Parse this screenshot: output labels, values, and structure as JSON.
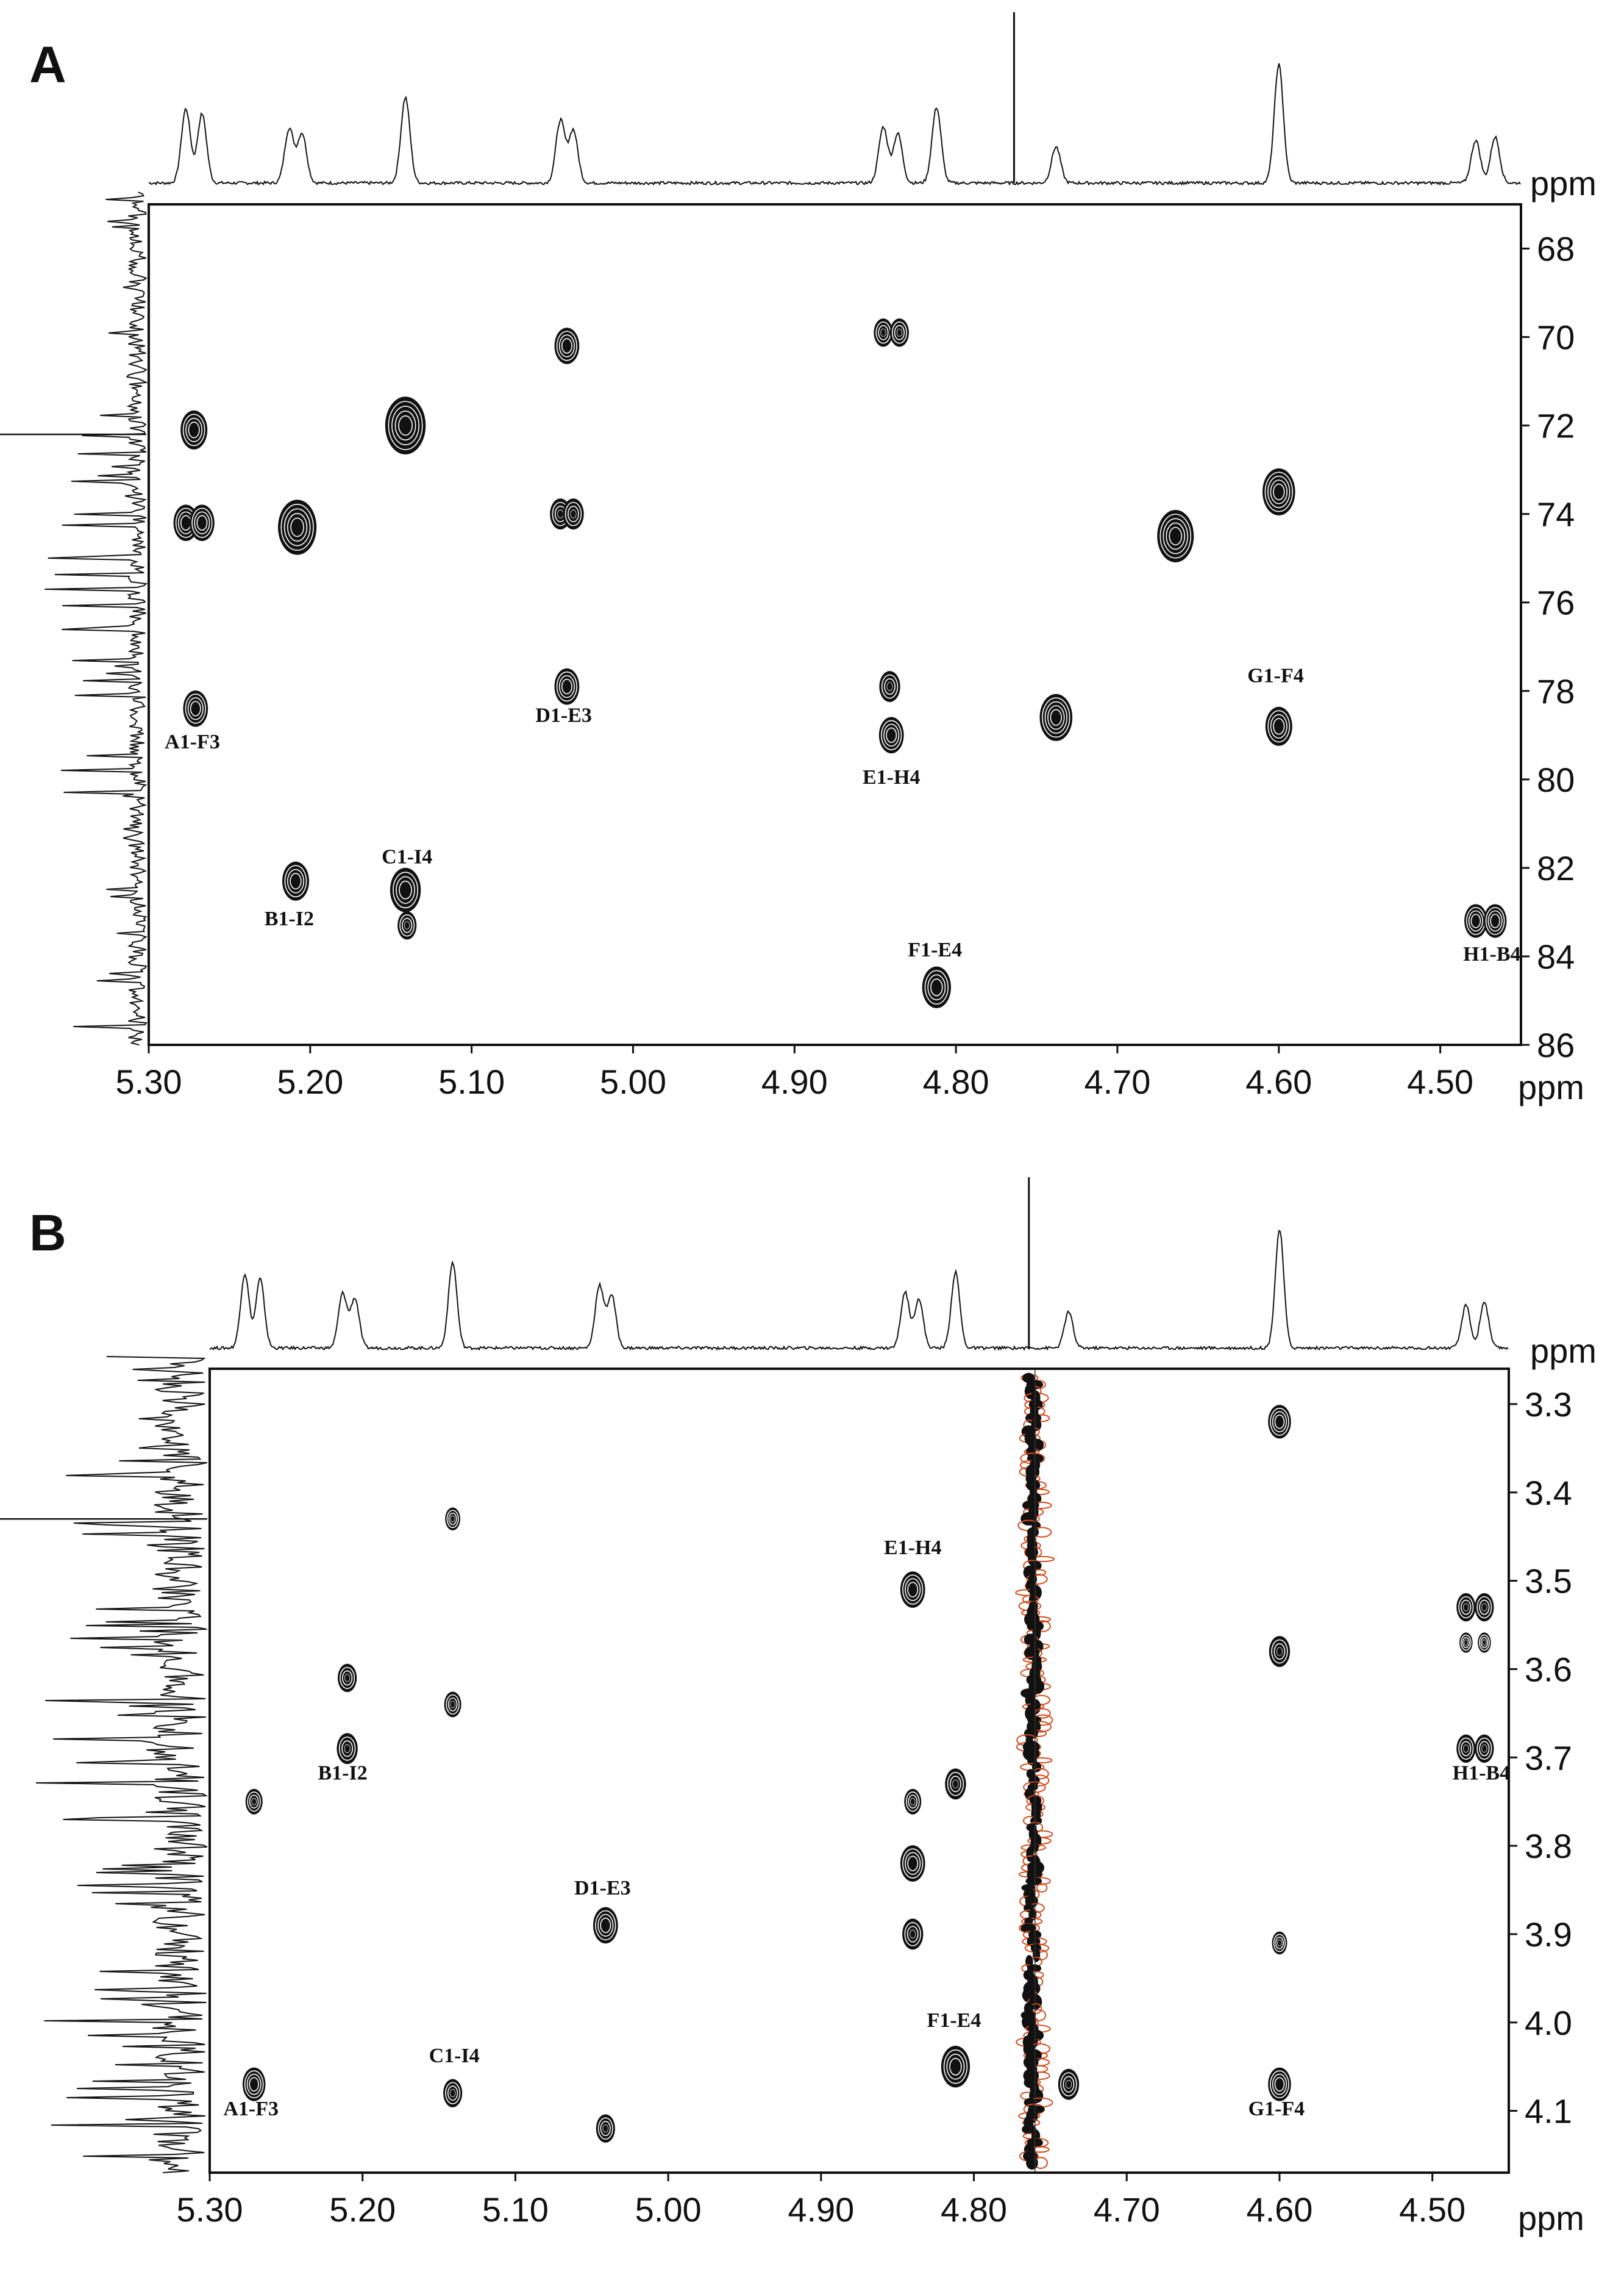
{
  "colors": {
    "positive": "#111111",
    "negative": "#d64a1a",
    "frame": "#111111"
  },
  "chart_data": [
    {
      "panel": "A",
      "type": "scatter",
      "description_type": "2D NMR contour (HMBC-type)",
      "xlabel": "ppm",
      "ylabel": "ppm",
      "xlim": [
        5.3,
        4.45
      ],
      "ylim": [
        67.0,
        86.0
      ],
      "x_ticks": [
        5.3,
        5.2,
        5.1,
        5.0,
        4.9,
        4.8,
        4.7,
        4.6,
        4.5
      ],
      "x_tick_labels": [
        "5.30",
        "5.20",
        "5.10",
        "5.00",
        "4.90",
        "4.80",
        "4.70",
        "4.60",
        "4.50"
      ],
      "y_ticks": [
        68,
        70,
        72,
        74,
        76,
        78,
        80,
        82,
        84,
        86
      ],
      "y_tick_labels": [
        "68",
        "70",
        "72",
        "74",
        "76",
        "78",
        "80",
        "82",
        "84",
        "86"
      ],
      "top_axis_unit": "ppm",
      "peaks": [
        {
          "x": 5.272,
          "y": 72.1,
          "s": 1.0
        },
        {
          "x": 5.277,
          "y": 74.2,
          "s": 0.9
        },
        {
          "x": 5.267,
          "y": 74.2,
          "s": 0.9
        },
        {
          "x": 5.271,
          "y": 78.4,
          "s": 0.9
        },
        {
          "x": 5.208,
          "y": 74.3,
          "s": 1.6
        },
        {
          "x": 5.209,
          "y": 82.3,
          "s": 1.0
        },
        {
          "x": 5.141,
          "y": 72.0,
          "s": 1.7
        },
        {
          "x": 5.141,
          "y": 82.5,
          "s": 1.2
        },
        {
          "x": 5.14,
          "y": 83.3,
          "s": 0.6
        },
        {
          "x": 5.041,
          "y": 70.2,
          "s": 0.9
        },
        {
          "x": 5.045,
          "y": 74.0,
          "s": 0.7
        },
        {
          "x": 5.037,
          "y": 74.0,
          "s": 0.7
        },
        {
          "x": 5.041,
          "y": 77.9,
          "s": 0.9
        },
        {
          "x": 4.845,
          "y": 69.9,
          "s": 0.6
        },
        {
          "x": 4.835,
          "y": 69.9,
          "s": 0.6
        },
        {
          "x": 4.841,
          "y": 77.9,
          "s": 0.7
        },
        {
          "x": 4.84,
          "y": 79.0,
          "s": 0.9
        },
        {
          "x": 4.812,
          "y": 84.7,
          "s": 1.1
        },
        {
          "x": 4.738,
          "y": 78.6,
          "s": 1.3
        },
        {
          "x": 4.664,
          "y": 74.5,
          "s": 1.5
        },
        {
          "x": 4.6,
          "y": 73.5,
          "s": 1.3
        },
        {
          "x": 4.6,
          "y": 78.8,
          "s": 1.0
        },
        {
          "x": 4.478,
          "y": 83.2,
          "s": 0.8
        },
        {
          "x": 4.466,
          "y": 83.2,
          "s": 0.8
        }
      ],
      "annotations": [
        {
          "text": "A1-F3",
          "x": 5.273,
          "y": 79.3
        },
        {
          "text": "B1-I2",
          "x": 5.213,
          "y": 83.3
        },
        {
          "text": "C1-I4",
          "x": 5.14,
          "y": 81.9
        },
        {
          "text": "D1-E3",
          "x": 5.043,
          "y": 78.7
        },
        {
          "text": "E1-H4",
          "x": 4.84,
          "y": 80.1
        },
        {
          "text": "F1-E4",
          "x": 4.813,
          "y": 84.0
        },
        {
          "text": "G1-F4",
          "x": 4.602,
          "y": 77.8
        },
        {
          "text": "H1-B4",
          "x": 4.468,
          "y": 84.1
        }
      ]
    },
    {
      "panel": "B",
      "type": "scatter",
      "description_type": "2D NMR contour (NOESY/ROESY-type)",
      "xlabel": "ppm",
      "ylabel": "ppm",
      "xlim": [
        5.3,
        4.45
      ],
      "ylim": [
        3.26,
        4.17
      ],
      "x_ticks": [
        5.3,
        5.2,
        5.1,
        5.0,
        4.9,
        4.8,
        4.7,
        4.6,
        4.5
      ],
      "x_tick_labels": [
        "5.30",
        "5.20",
        "5.10",
        "5.00",
        "4.90",
        "4.80",
        "4.70",
        "4.60",
        "4.50"
      ],
      "y_ticks": [
        3.3,
        3.4,
        3.5,
        3.6,
        3.7,
        3.8,
        3.9,
        4.0,
        4.1
      ],
      "y_tick_labels": [
        "3.3",
        "3.4",
        "3.5",
        "3.6",
        "3.7",
        "3.8",
        "3.9",
        "4.0",
        "4.1"
      ],
      "top_axis_unit": "ppm",
      "peaks": [
        {
          "x": 4.6,
          "y": 3.32,
          "s": 0.8
        },
        {
          "x": 5.141,
          "y": 3.43,
          "s": 0.4
        },
        {
          "x": 4.84,
          "y": 3.51,
          "s": 0.9
        },
        {
          "x": 4.478,
          "y": 3.53,
          "s": 0.6
        },
        {
          "x": 4.466,
          "y": 3.53,
          "s": 0.6
        },
        {
          "x": 4.478,
          "y": 3.57,
          "s": 0.3
        },
        {
          "x": 4.466,
          "y": 3.57,
          "s": 0.3
        },
        {
          "x": 4.6,
          "y": 3.58,
          "s": 0.7
        },
        {
          "x": 5.21,
          "y": 3.61,
          "s": 0.6
        },
        {
          "x": 5.141,
          "y": 3.64,
          "s": 0.5
        },
        {
          "x": 5.21,
          "y": 3.69,
          "s": 0.7
        },
        {
          "x": 4.478,
          "y": 3.69,
          "s": 0.6
        },
        {
          "x": 4.466,
          "y": 3.69,
          "s": 0.6
        },
        {
          "x": 4.812,
          "y": 3.73,
          "s": 0.7
        },
        {
          "x": 5.271,
          "y": 3.75,
          "s": 0.5
        },
        {
          "x": 4.84,
          "y": 3.75,
          "s": 0.5
        },
        {
          "x": 4.84,
          "y": 3.82,
          "s": 0.9
        },
        {
          "x": 5.041,
          "y": 3.89,
          "s": 0.9
        },
        {
          "x": 4.84,
          "y": 3.9,
          "s": 0.7
        },
        {
          "x": 4.6,
          "y": 3.91,
          "s": 0.4
        },
        {
          "x": 4.812,
          "y": 4.05,
          "s": 1.1
        },
        {
          "x": 4.738,
          "y": 4.07,
          "s": 0.7
        },
        {
          "x": 5.271,
          "y": 4.07,
          "s": 0.8
        },
        {
          "x": 4.6,
          "y": 4.07,
          "s": 0.8
        },
        {
          "x": 5.141,
          "y": 4.08,
          "s": 0.6
        },
        {
          "x": 5.041,
          "y": 4.12,
          "s": 0.6
        }
      ],
      "annotations": [
        {
          "text": "A1-F3",
          "x": 5.273,
          "y": 4.105
        },
        {
          "text": "B1-I2",
          "x": 5.213,
          "y": 3.725
        },
        {
          "text": "C1-I4",
          "x": 5.14,
          "y": 4.045
        },
        {
          "text": "D1-E3",
          "x": 5.043,
          "y": 3.855
        },
        {
          "text": "E1-H4",
          "x": 4.84,
          "y": 3.47
        },
        {
          "text": "F1-E4",
          "x": 4.813,
          "y": 4.005
        },
        {
          "text": "G1-F4",
          "x": 4.602,
          "y": 4.105
        },
        {
          "text": "H1-B4",
          "x": 4.468,
          "y": 3.725
        }
      ],
      "solvent_ridge": {
        "x": 4.76,
        "y_range": [
          3.28,
          4.17
        ]
      }
    }
  ],
  "labels": {
    "panel_a": "A",
    "panel_b": "B",
    "ppm_label": "ppm"
  }
}
